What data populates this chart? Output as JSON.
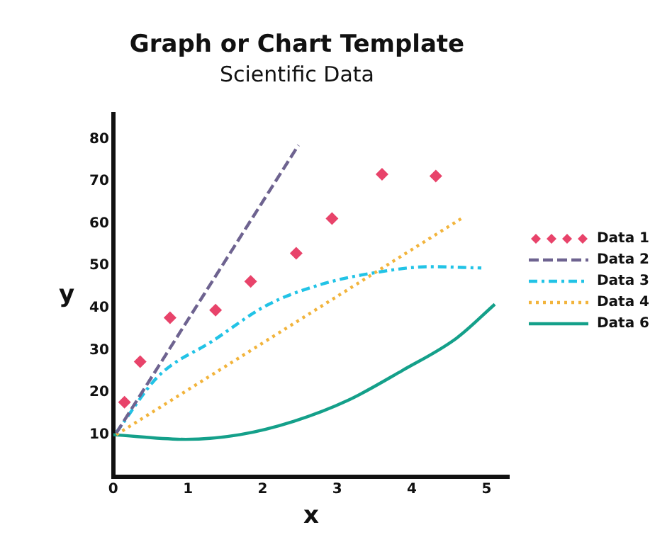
{
  "chart_data": {
    "type": "line",
    "title": "Graph or Chart Template",
    "subtitle": "Scientific Data",
    "xlabel": "x",
    "ylabel": "y",
    "xlim": [
      0,
      5.3
    ],
    "ylim": [
      0,
      86
    ],
    "xticks": [
      0,
      1,
      2,
      3,
      4,
      5
    ],
    "yticks": [
      10,
      20,
      30,
      40,
      50,
      60,
      70,
      80
    ],
    "grid": false,
    "legend": "right",
    "series": [
      {
        "name": "Data 1",
        "type": "scatter",
        "marker": "diamond",
        "color": "#e8436a",
        "x": [
          0.15,
          0.36,
          0.76,
          1.37,
          1.84,
          2.45,
          2.93,
          3.6,
          4.32
        ],
        "values": [
          17.7,
          27.3,
          37.7,
          39.5,
          46.3,
          53,
          61.2,
          71.7,
          71.3
        ]
      },
      {
        "name": "Data 2",
        "type": "line",
        "marker": "none",
        "line_style": "dashed",
        "color": "#6e6390",
        "x": [
          0.04,
          2.48
        ],
        "values": [
          10.4,
          78.6
        ]
      },
      {
        "name": "Data 3",
        "type": "line",
        "marker": "none",
        "line_style": "dashdot",
        "color": "#22c3e6",
        "x": [
          0.04,
          0.6,
          1.33,
          2.06,
          2.78,
          3.51,
          4.24,
          4.93
        ],
        "values": [
          10.5,
          23.8,
          32.2,
          40.7,
          45.6,
          48.4,
          49.8,
          49.5
        ]
      },
      {
        "name": "Data 4",
        "type": "line",
        "marker": "none",
        "line_style": "dotted",
        "color": "#f2b43c",
        "x": [
          0.04,
          4.67
        ],
        "values": [
          10,
          61.3
        ]
      },
      {
        "name": "Data 6",
        "type": "line",
        "marker": "none",
        "line_style": "solid",
        "color": "#14a08a",
        "x": [
          0,
          0.97,
          1.69,
          2.42,
          3.15,
          3.87,
          4.6,
          5.11
        ],
        "values": [
          10,
          8.9,
          10,
          13.2,
          18.2,
          25.2,
          32.9,
          40.9
        ]
      }
    ]
  }
}
